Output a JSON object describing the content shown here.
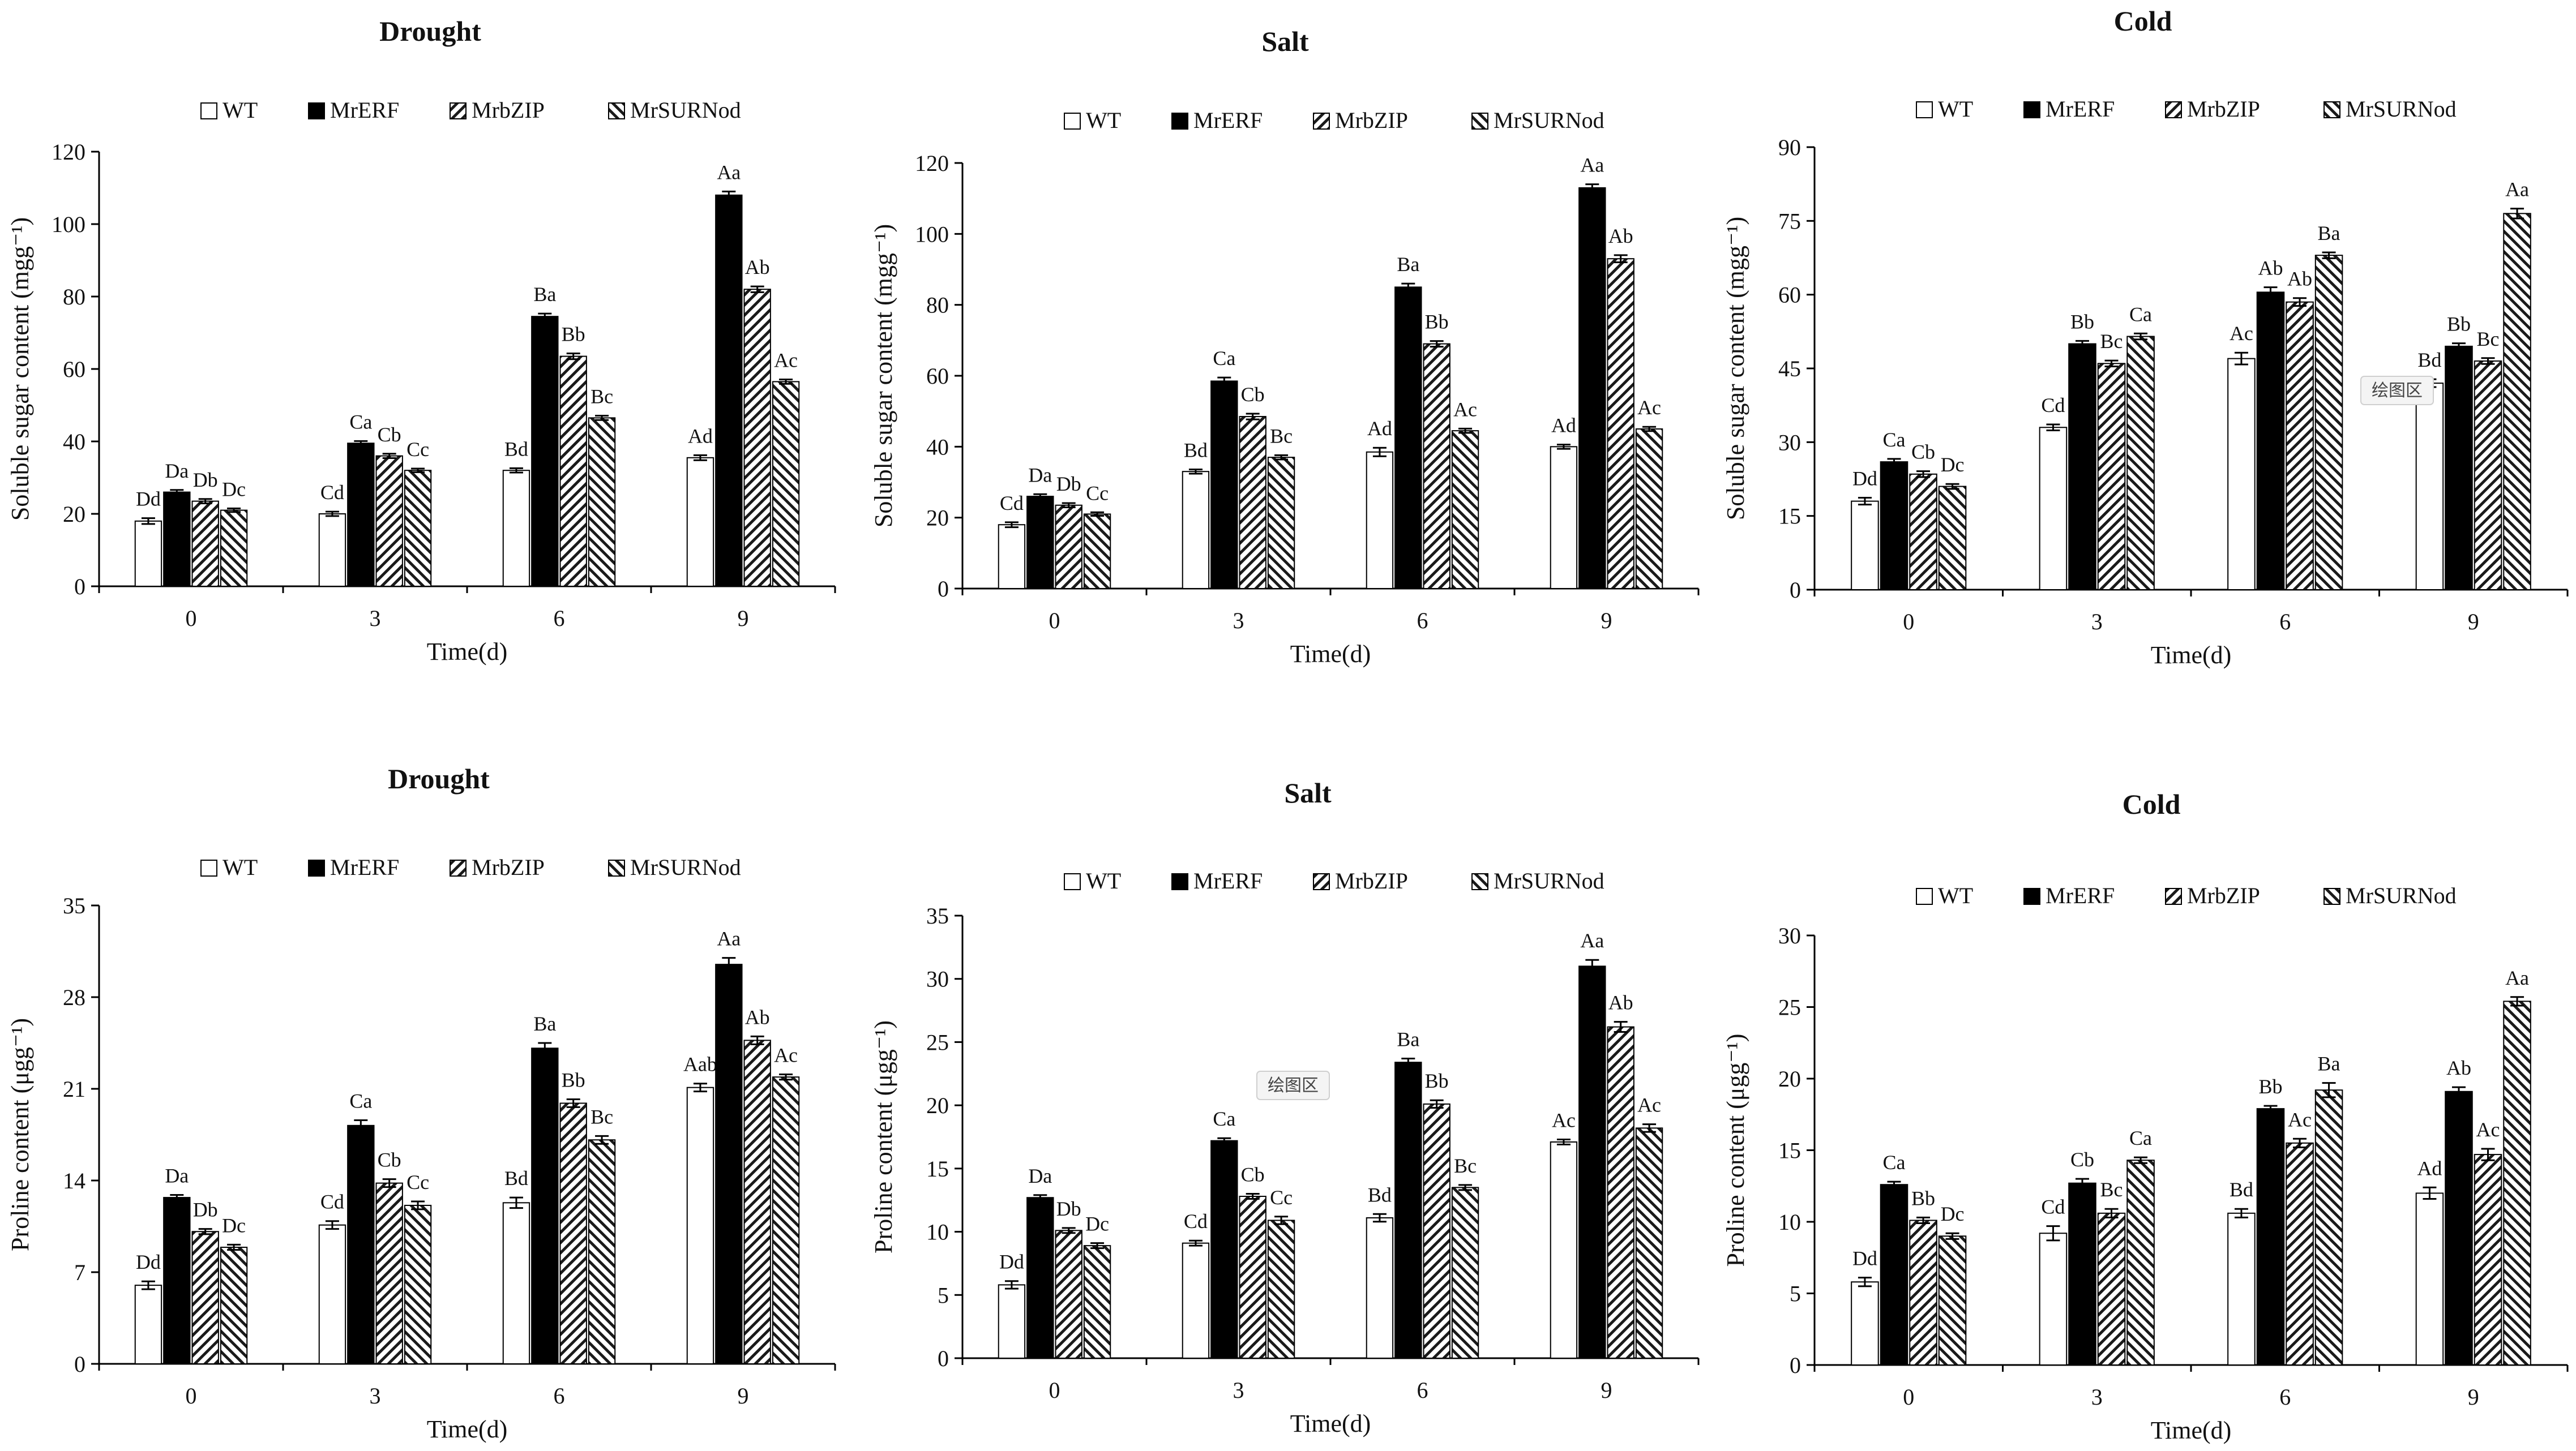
{
  "colors": {
    "wt": "#ffffff",
    "mrerf": "#000000",
    "hatch": "#1a1a1a",
    "axis": "#000000",
    "text": "#111111"
  },
  "legend": [
    "WT",
    "MrERF",
    "MrbZIP",
    "MrSURNod"
  ],
  "tooltip_label": "绘图区",
  "chart_data": [
    {
      "type": "bar",
      "title": "Drought",
      "xlabel": "Time(d)",
      "ylabel": "Soluble sugar content (mgg⁻¹)",
      "ylim": [
        0,
        120
      ],
      "yticks": [
        0,
        20,
        40,
        60,
        80,
        100,
        120
      ],
      "categories": [
        "0",
        "3",
        "6",
        "9"
      ],
      "series": [
        {
          "name": "WT",
          "values": [
            18,
            20,
            32,
            35.5
          ],
          "errors": [
            0.8,
            0.6,
            0.6,
            0.7
          ],
          "labels": [
            "Dd",
            "Cd",
            "Bd",
            "Ad"
          ]
        },
        {
          "name": "MrERF",
          "values": [
            26,
            39.5,
            74.5,
            108
          ],
          "errors": [
            0.6,
            0.6,
            0.8,
            1.0
          ],
          "labels": [
            "Da",
            "Ca",
            "Ba",
            "Aa"
          ]
        },
        {
          "name": "MrbZIP",
          "values": [
            23.5,
            36,
            63.5,
            82
          ],
          "errors": [
            0.6,
            0.6,
            0.8,
            0.8
          ],
          "labels": [
            "Db",
            "Cb",
            "Bb",
            "Ab"
          ]
        },
        {
          "name": "MrSURNod",
          "values": [
            21,
            32,
            46.5,
            56.5
          ],
          "errors": [
            0.5,
            0.5,
            0.6,
            0.6
          ],
          "labels": [
            "Dc",
            "Cc",
            "Bc",
            "Ac"
          ]
        }
      ]
    },
    {
      "type": "bar",
      "title": "Salt",
      "xlabel": "Time(d)",
      "ylabel": "Soluble sugar content (mgg⁻¹)",
      "ylim": [
        0,
        120
      ],
      "yticks": [
        0,
        20,
        40,
        60,
        80,
        100,
        120
      ],
      "categories": [
        "0",
        "3",
        "6",
        "9"
      ],
      "series": [
        {
          "name": "WT",
          "values": [
            18,
            33,
            38.5,
            40
          ],
          "errors": [
            0.7,
            0.6,
            1.2,
            0.6
          ],
          "labels": [
            "Cd",
            "Bd",
            "Ad",
            "Ad"
          ]
        },
        {
          "name": "MrERF",
          "values": [
            26,
            58.5,
            85,
            113
          ],
          "errors": [
            0.6,
            1.0,
            1.0,
            1.0
          ],
          "labels": [
            "Da",
            "Ca",
            "Ba",
            "Aa"
          ]
        },
        {
          "name": "MrbZIP",
          "values": [
            23.5,
            48.5,
            69,
            93
          ],
          "errors": [
            0.6,
            0.8,
            0.8,
            1.0
          ],
          "labels": [
            "Db",
            "Cb",
            "Bb",
            "Ab"
          ]
        },
        {
          "name": "MrSURNod",
          "values": [
            21,
            37,
            44.5,
            45
          ],
          "errors": [
            0.5,
            0.6,
            0.6,
            0.6
          ],
          "labels": [
            "Cc",
            "Bc",
            "Ac",
            "Ac"
          ]
        }
      ]
    },
    {
      "type": "bar",
      "title": "Cold",
      "xlabel": "Time(d)",
      "ylabel": "Soluble sugar content (mgg⁻¹)",
      "ylim": [
        0,
        90
      ],
      "yticks": [
        0,
        15,
        30,
        45,
        60,
        75,
        90
      ],
      "categories": [
        "0",
        "3",
        "6",
        "9"
      ],
      "series": [
        {
          "name": "WT",
          "values": [
            18,
            33,
            47,
            42
          ],
          "errors": [
            0.7,
            0.6,
            1.2,
            0.8
          ],
          "labels": [
            "Dd",
            "Cd",
            "Ac",
            "Bd"
          ]
        },
        {
          "name": "MrERF",
          "values": [
            26,
            50,
            60.5,
            49.5
          ],
          "errors": [
            0.6,
            0.6,
            1.0,
            0.6
          ],
          "labels": [
            "Ca",
            "Bb",
            "Ab",
            "Bb"
          ]
        },
        {
          "name": "MrbZIP",
          "values": [
            23.5,
            46,
            58.5,
            46.5
          ],
          "errors": [
            0.6,
            0.6,
            0.8,
            0.6
          ],
          "labels": [
            "Cb",
            "Bc",
            "Ab",
            "Bc"
          ]
        },
        {
          "name": "MrSURNod",
          "values": [
            21,
            51.5,
            68,
            76.5
          ],
          "errors": [
            0.5,
            0.6,
            0.6,
            1.0
          ],
          "labels": [
            "Dc",
            "Ca",
            "Ba",
            "Aa"
          ]
        }
      ]
    },
    {
      "type": "bar",
      "title": "Drought",
      "xlabel": "Time(d)",
      "ylabel": "Proline content (μgg⁻¹)",
      "ylim": [
        0,
        35
      ],
      "yticks": [
        0,
        7,
        14,
        21,
        28,
        35
      ],
      "categories": [
        "0",
        "3",
        "6",
        "9"
      ],
      "series": [
        {
          "name": "WT",
          "values": [
            6,
            10.6,
            12.3,
            21.1
          ],
          "errors": [
            0.3,
            0.3,
            0.4,
            0.3
          ],
          "labels": [
            "Dd",
            "Cd",
            "Bd",
            "Aab"
          ]
        },
        {
          "name": "MrERF",
          "values": [
            12.7,
            18.2,
            24.1,
            30.5
          ],
          "errors": [
            0.2,
            0.4,
            0.4,
            0.5
          ],
          "labels": [
            "Da",
            "Ca",
            "Ba",
            "Aa"
          ]
        },
        {
          "name": "MrbZIP",
          "values": [
            10.1,
            13.8,
            19.9,
            24.7
          ],
          "errors": [
            0.2,
            0.3,
            0.3,
            0.3
          ],
          "labels": [
            "Db",
            "Cb",
            "Bb",
            "Ab"
          ]
        },
        {
          "name": "MrSURNod",
          "values": [
            8.9,
            12.1,
            17.1,
            21.9
          ],
          "errors": [
            0.2,
            0.3,
            0.3,
            0.2
          ],
          "labels": [
            "Dc",
            "Cc",
            "Bc",
            "Ac"
          ]
        }
      ]
    },
    {
      "type": "bar",
      "title": "Salt",
      "xlabel": "Time(d)",
      "ylabel": "Proline content (μgg⁻¹)",
      "ylim": [
        0,
        35
      ],
      "yticks": [
        0,
        5,
        10,
        15,
        20,
        25,
        30,
        35
      ],
      "categories": [
        "0",
        "3",
        "6",
        "9"
      ],
      "series": [
        {
          "name": "WT",
          "values": [
            5.8,
            9.1,
            11.1,
            17.1
          ],
          "errors": [
            0.3,
            0.2,
            0.3,
            0.2
          ],
          "labels": [
            "Dd",
            "Cd",
            "Bd",
            "Ac"
          ]
        },
        {
          "name": "MrERF",
          "values": [
            12.7,
            17.2,
            23.4,
            31
          ],
          "errors": [
            0.2,
            0.2,
            0.3,
            0.5
          ],
          "labels": [
            "Da",
            "Ca",
            "Ba",
            "Aa"
          ]
        },
        {
          "name": "MrbZIP",
          "values": [
            10.1,
            12.8,
            20.1,
            26.2
          ],
          "errors": [
            0.2,
            0.2,
            0.3,
            0.4
          ],
          "labels": [
            "Db",
            "Cb",
            "Bb",
            "Ab"
          ]
        },
        {
          "name": "MrSURNod",
          "values": [
            8.9,
            10.9,
            13.5,
            18.2
          ],
          "errors": [
            0.2,
            0.3,
            0.2,
            0.3
          ],
          "labels": [
            "Dc",
            "Cc",
            "Bc",
            "Ac"
          ]
        }
      ]
    },
    {
      "type": "bar",
      "title": "Cold",
      "xlabel": "Time(d)",
      "ylabel": "Proline content (μgg⁻¹)",
      "ylim": [
        0,
        30
      ],
      "yticks": [
        0,
        5,
        10,
        15,
        20,
        25,
        30
      ],
      "categories": [
        "0",
        "3",
        "6",
        "9"
      ],
      "series": [
        {
          "name": "WT",
          "values": [
            5.8,
            9.2,
            10.6,
            12
          ],
          "errors": [
            0.3,
            0.5,
            0.3,
            0.4
          ],
          "labels": [
            "Dd",
            "Cd",
            "Bd",
            "Ad"
          ]
        },
        {
          "name": "MrERF",
          "values": [
            12.6,
            12.7,
            17.9,
            19.1
          ],
          "errors": [
            0.2,
            0.3,
            0.2,
            0.3
          ],
          "labels": [
            "Ca",
            "Cb",
            "Bb",
            "Ab"
          ]
        },
        {
          "name": "MrbZIP",
          "values": [
            10.1,
            10.6,
            15.5,
            14.7
          ],
          "errors": [
            0.2,
            0.3,
            0.3,
            0.4
          ],
          "labels": [
            "Bb",
            "Bc",
            "Ac",
            "Ac"
          ]
        },
        {
          "name": "MrSURNod",
          "values": [
            9,
            14.3,
            19.2,
            25.4
          ],
          "errors": [
            0.2,
            0.2,
            0.5,
            0.3
          ],
          "labels": [
            "Dc",
            "Ca",
            "Ba",
            "Aa"
          ]
        }
      ]
    }
  ]
}
